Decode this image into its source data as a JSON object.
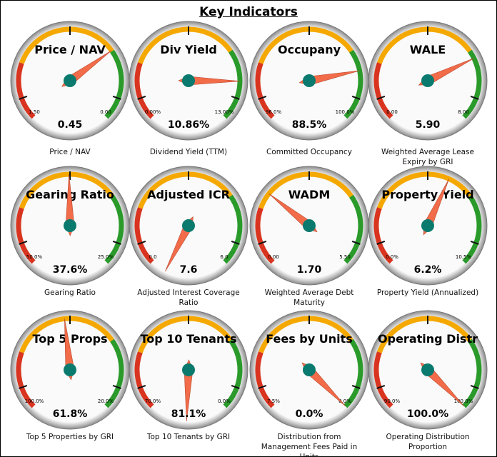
{
  "title": "Key Indicators",
  "chart_data": [
    {
      "type": "gauge",
      "title": "Price / NAV",
      "caption": "Price / NAV",
      "lim": [
        {
          "value": 1.5,
          "label": "1.50"
        },
        {
          "value": 0,
          "label": "0.00"
        }
      ],
      "value": 0.45
    },
    {
      "type": "gauge",
      "title": "Div Yield",
      "caption": "Dividend Yield (TTM)",
      "lim": [
        {
          "value": 0,
          "label": "0.00%"
        },
        {
          "value": 13,
          "label": "13.00%"
        }
      ],
      "value": 10.86,
      "value_label": "10.86%"
    },
    {
      "type": "gauge",
      "title": "Occupany",
      "caption": "Committed Occupancy",
      "lim": [
        {
          "value": 96,
          "label": "96.0%"
        },
        {
          "value": 100,
          "label": "100.0%"
        }
      ],
      "value": 88.5,
      "value_label": "88.5%"
    },
    {
      "type": "gauge",
      "title": "WALE",
      "caption": "Weighted Average Lease Expiry by GRI",
      "lim": [
        {
          "value": 0,
          "label": "0.00"
        },
        {
          "value": 8,
          "label": "8.00"
        }
      ],
      "value": 5.9,
      "value_label": "5.90"
    },
    {
      "type": "gauge",
      "title": "Gearing Ratio",
      "caption": "Gearing Ratio",
      "lim": [
        {
          "value": 50,
          "label": "50.0%"
        },
        {
          "value": 25,
          "label": "25.0%"
        }
      ],
      "value": 37.6,
      "value_label": "37.6%"
    },
    {
      "type": "gauge",
      "title": "Adjusted ICR",
      "caption": "Adjusted Interest Coverage Ratio",
      "lim": [
        {
          "value": 0,
          "label": "0.0"
        },
        {
          "value": 6,
          "label": "6.0"
        }
      ],
      "value": 7.6
    },
    {
      "type": "gauge",
      "title": "WADM",
      "caption": "Weighted Average Debt Maturity",
      "lim": [
        {
          "value": 0,
          "label": "0.00"
        },
        {
          "value": 5.5,
          "label": "5.50"
        }
      ],
      "value": 1.7,
      "value_label": "1.70"
    },
    {
      "type": "gauge",
      "title": "Property Yield",
      "caption": "Property Yield (Annualized)",
      "lim": [
        {
          "value": 0,
          "label": "0.0%"
        },
        {
          "value": 10.5,
          "label": "10.5%"
        }
      ],
      "value": 6.2,
      "value_label": "6.2%"
    },
    {
      "type": "gauge",
      "title": "Top 5 Props",
      "caption": "Top 5 Properties by GRI",
      "lim": [
        {
          "value": 100,
          "label": "100.0%"
        },
        {
          "value": 20,
          "label": "20.0%"
        }
      ],
      "value": 61.8,
      "value_label": "61.8%"
    },
    {
      "type": "gauge",
      "title": "Top 10 Tenants",
      "caption": "Top 10 Tenants by GRI",
      "lim": [
        {
          "value": 70,
          "label": "70.0%"
        },
        {
          "value": 0,
          "label": "0.0%"
        }
      ],
      "value": 81.1,
      "value_label": "81.1%"
    },
    {
      "type": "gauge",
      "title": "Fees by Units",
      "caption": "Distribution from Management Fees Paid in Units",
      "lim": [
        {
          "value": 7.5,
          "label": "7.5%"
        },
        {
          "value": 0,
          "label": "0.0%"
        }
      ],
      "value": 0,
      "value_label": "0.0%"
    },
    {
      "type": "gauge",
      "title": "Operating Distr",
      "caption": "Operating Distribution Proportion",
      "lim": [
        {
          "value": 90,
          "label": "90.0%"
        },
        {
          "value": 100,
          "label": "100.0%"
        }
      ],
      "value": 100,
      "value_label": "100.0%"
    }
  ]
}
